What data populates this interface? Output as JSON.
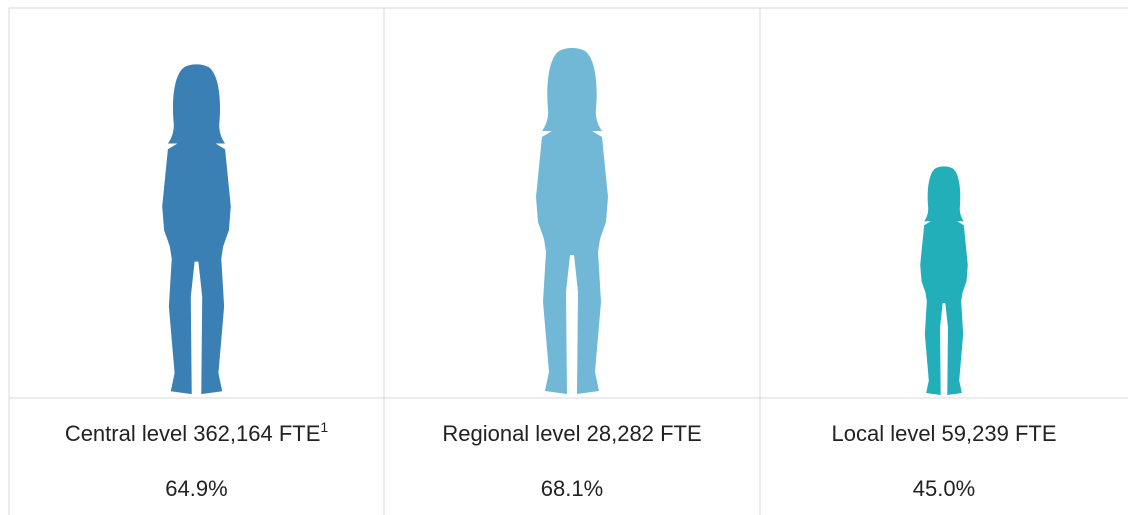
{
  "chart_data": {
    "type": "pictograph",
    "categories": [
      "Central level 362,164 FTE",
      "Regional level 28,282 FTE",
      "Local level 59,239 FTE"
    ],
    "category_notes": [
      "1",
      null,
      null
    ],
    "values": [
      64.9,
      68.1,
      45.0
    ],
    "value_labels": [
      "64.9%",
      "68.1%",
      "45.0%"
    ],
    "colors": [
      "#3b80b5",
      "#70b8d6",
      "#22afb9"
    ]
  }
}
